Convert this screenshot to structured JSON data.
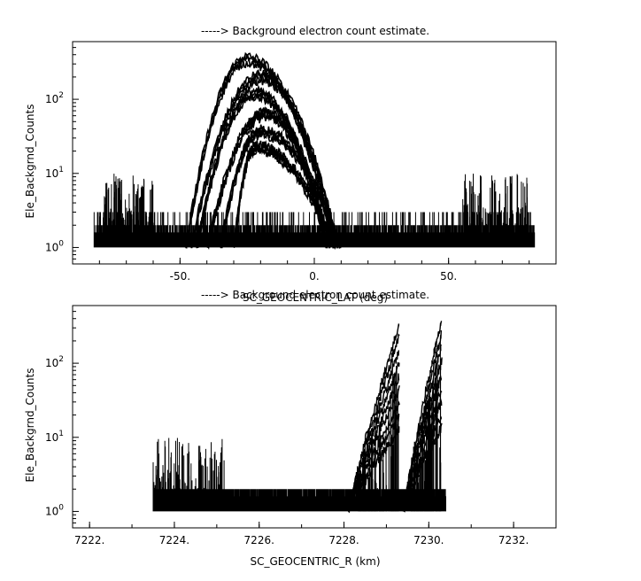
{
  "chart_data": [
    {
      "type": "scatter",
      "title": "-----> Background electron count estimate.",
      "xlabel": "SC_GEOCENTRIC_LAT (deg)",
      "ylabel": "Ele_Backgrnd_Counts",
      "xlim": [
        -90,
        90
      ],
      "ylim": [
        0.6,
        600
      ],
      "yscale": "log",
      "xticks": [
        -50,
        0,
        50
      ],
      "xtick_labels": [
        "-50.",
        "0.",
        "50."
      ],
      "yticks": [
        1,
        10,
        100
      ],
      "grid": false,
      "data_summary": {
        "x_extent": [
          -82,
          82
        ],
        "baseline_counts": [
          1,
          2,
          3
        ],
        "noise_spikes": [
          {
            "x_range": [
              -80,
              -60
            ],
            "max": 10
          },
          {
            "x_range": [
              55,
              80
            ],
            "max": 10
          }
        ],
        "arcs": [
          {
            "x_range": [
              -48,
              8
            ],
            "peak_x": -25,
            "peak": 380
          },
          {
            "x_range": [
              -46,
              9
            ],
            "peak_x": -20,
            "peak": 220
          },
          {
            "x_range": [
              -44,
              6
            ],
            "peak_x": -22,
            "peak": 130
          },
          {
            "x_range": [
              -40,
              5
            ],
            "peak_x": -18,
            "peak": 70
          },
          {
            "x_range": [
              -35,
              10
            ],
            "peak_x": -20,
            "peak": 40
          },
          {
            "x_range": [
              -30,
              8
            ],
            "peak_x": -22,
            "peak": 25
          }
        ]
      }
    },
    {
      "type": "scatter",
      "title": "-----> Background electron count estimate.",
      "xlabel": "SC_GEOCENTRIC_R (km)",
      "ylabel": "Ele_Backgrnd_Counts",
      "xlim": [
        7221.6,
        7233.0
      ],
      "ylim": [
        0.6,
        600
      ],
      "yscale": "log",
      "xticks": [
        7222,
        7224,
        7226,
        7228,
        7230,
        7232
      ],
      "xtick_labels": [
        "7222.",
        "7224.",
        "7226.",
        "7228.",
        "7230.",
        "7232."
      ],
      "yticks": [
        1,
        10,
        100
      ],
      "grid": false,
      "data_summary": {
        "x_extent": [
          7223.5,
          7230.4
        ],
        "baseline_counts": [
          1,
          2
        ],
        "noise_spikes": [
          {
            "x_range": [
              7223.5,
              7225.2
            ],
            "max": 10
          }
        ],
        "rising_branches": [
          {
            "x_range": [
              7228.1,
              7229.3
            ],
            "peak": 330
          },
          {
            "x_range": [
              7229.4,
              7230.3
            ],
            "peak": 380
          }
        ]
      }
    }
  ]
}
